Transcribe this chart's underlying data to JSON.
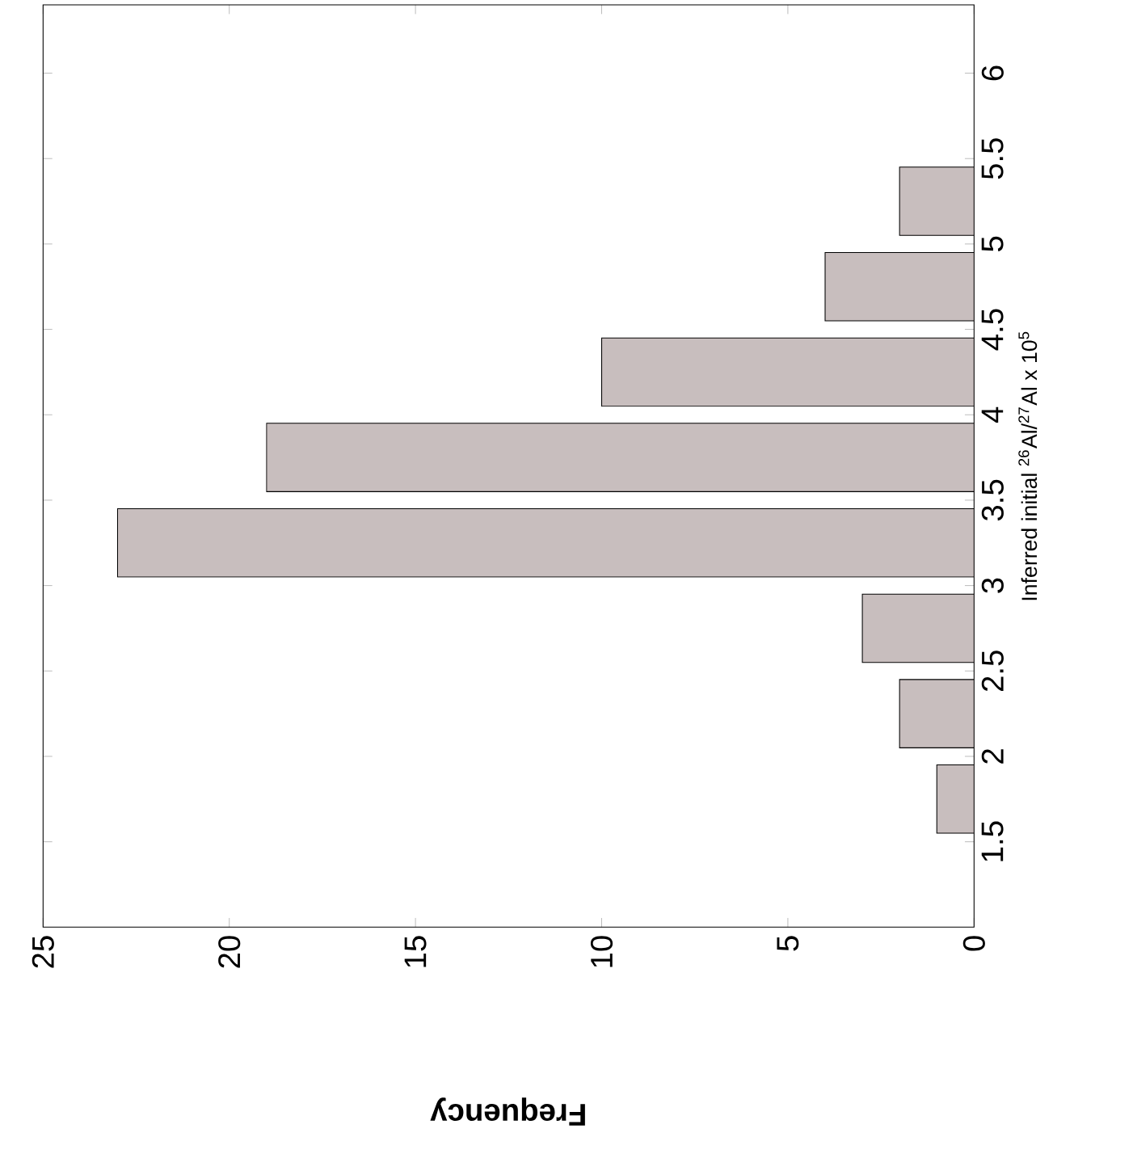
{
  "chart_data": {
    "type": "histogram",
    "orientation": "horizontal",
    "xlabel": "Frequency",
    "ylabel": "Inferred initial $^{26}$Al/$^{27}$Al x 10$^{5}$",
    "bins": [
      1.5,
      2,
      2.5,
      3,
      3.5,
      4,
      4.5,
      5,
      5.5
    ],
    "values": [
      1,
      2,
      3,
      23,
      19,
      10,
      4,
      2
    ],
    "color": "#c8bebe",
    "xlim": [
      25,
      0
    ],
    "xticks": [
      0,
      5,
      10,
      15,
      20,
      25
    ],
    "ylim": [
      1.0,
      6.4
    ],
    "yticks": [
      1.5,
      2,
      2.5,
      3,
      3.5,
      4,
      4.5,
      5,
      5.5,
      6
    ],
    "grid": false
  }
}
